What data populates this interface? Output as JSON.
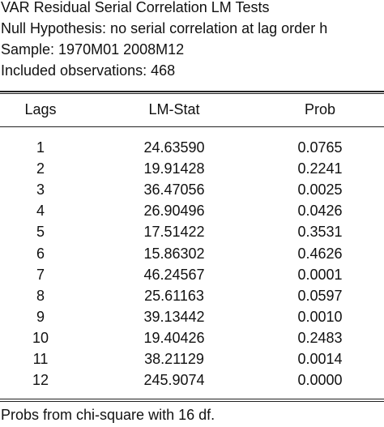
{
  "header": {
    "title": "VAR Residual Serial Correlation LM Tests",
    "null_hypothesis": "Null Hypothesis: no serial correlation at lag order h",
    "sample": "Sample: 1970M01 2008M12",
    "observations": "Included observations: 468"
  },
  "table": {
    "columns": [
      "Lags",
      "LM-Stat",
      "Prob"
    ],
    "rows": [
      {
        "lag": "1",
        "lm": "24.63590",
        "prob": "0.0765"
      },
      {
        "lag": "2",
        "lm": "19.91428",
        "prob": "0.2241"
      },
      {
        "lag": "3",
        "lm": "36.47056",
        "prob": "0.0025"
      },
      {
        "lag": "4",
        "lm": "26.90496",
        "prob": "0.0426"
      },
      {
        "lag": "5",
        "lm": "17.51422",
        "prob": "0.3531"
      },
      {
        "lag": "6",
        "lm": "15.86302",
        "prob": "0.4626"
      },
      {
        "lag": "7",
        "lm": "46.24567",
        "prob": "0.0001"
      },
      {
        "lag": "8",
        "lm": "25.61163",
        "prob": "0.0597"
      },
      {
        "lag": "9",
        "lm": "39.13442",
        "prob": "0.0010"
      },
      {
        "lag": "10",
        "lm": "19.40426",
        "prob": "0.2483"
      },
      {
        "lag": "11",
        "lm": "38.21129",
        "prob": "0.0014"
      },
      {
        "lag": "12",
        "lm": "245.9074",
        "prob": "0.0000"
      }
    ]
  },
  "footer": {
    "note": "Probs from chi-square with 16 df."
  }
}
